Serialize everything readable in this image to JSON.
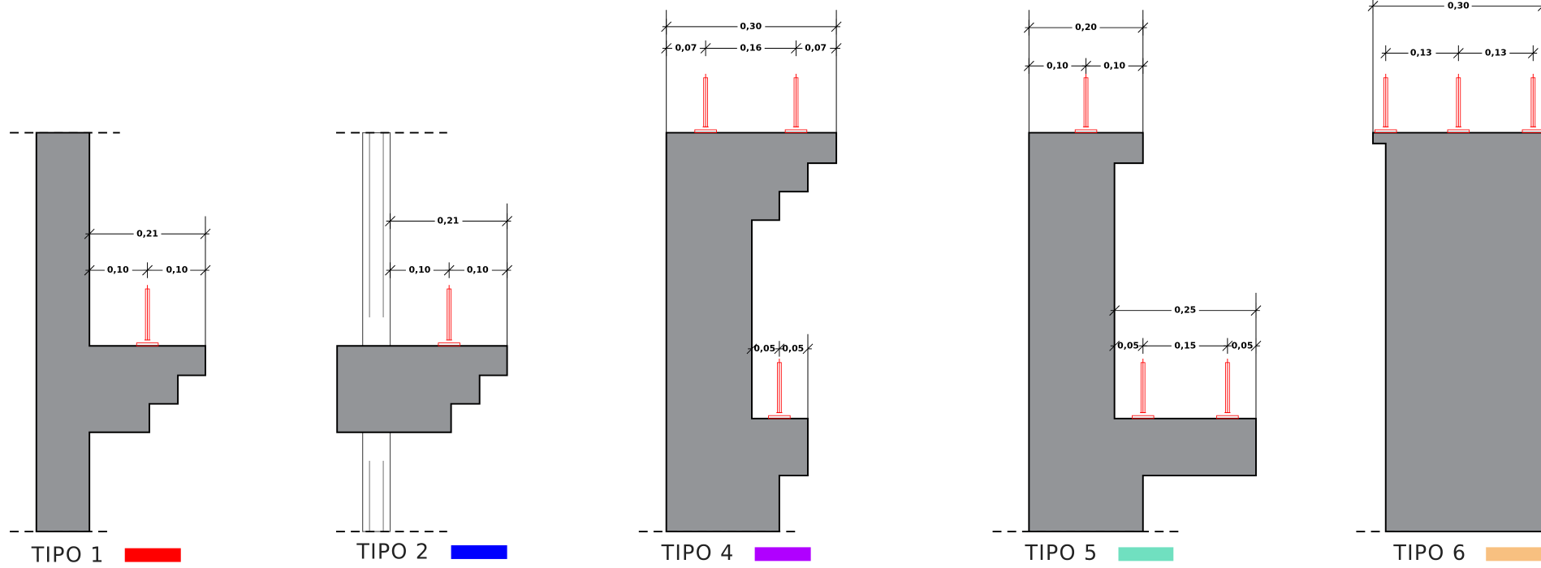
{
  "sections": [
    {
      "label": "TIPO 1",
      "dims": [
        "0,21",
        "0,10",
        "0,10"
      ]
    },
    {
      "label": "TIPO 2",
      "dims": [
        "0,21",
        "0,10",
        "0,10"
      ]
    },
    {
      "label": "TIPO 4",
      "dims": [
        "0,30",
        "0,07",
        "0,16",
        "0,07",
        "0,05",
        "0,05"
      ]
    },
    {
      "label": "TIPO 5",
      "dims": [
        "0,20",
        "0,10",
        "0,10",
        "0,25",
        "0,05",
        "0,15",
        "0,05"
      ]
    },
    {
      "label": "TIPO 6",
      "dims": [
        "0,30",
        "0,13",
        "0,13"
      ]
    }
  ]
}
